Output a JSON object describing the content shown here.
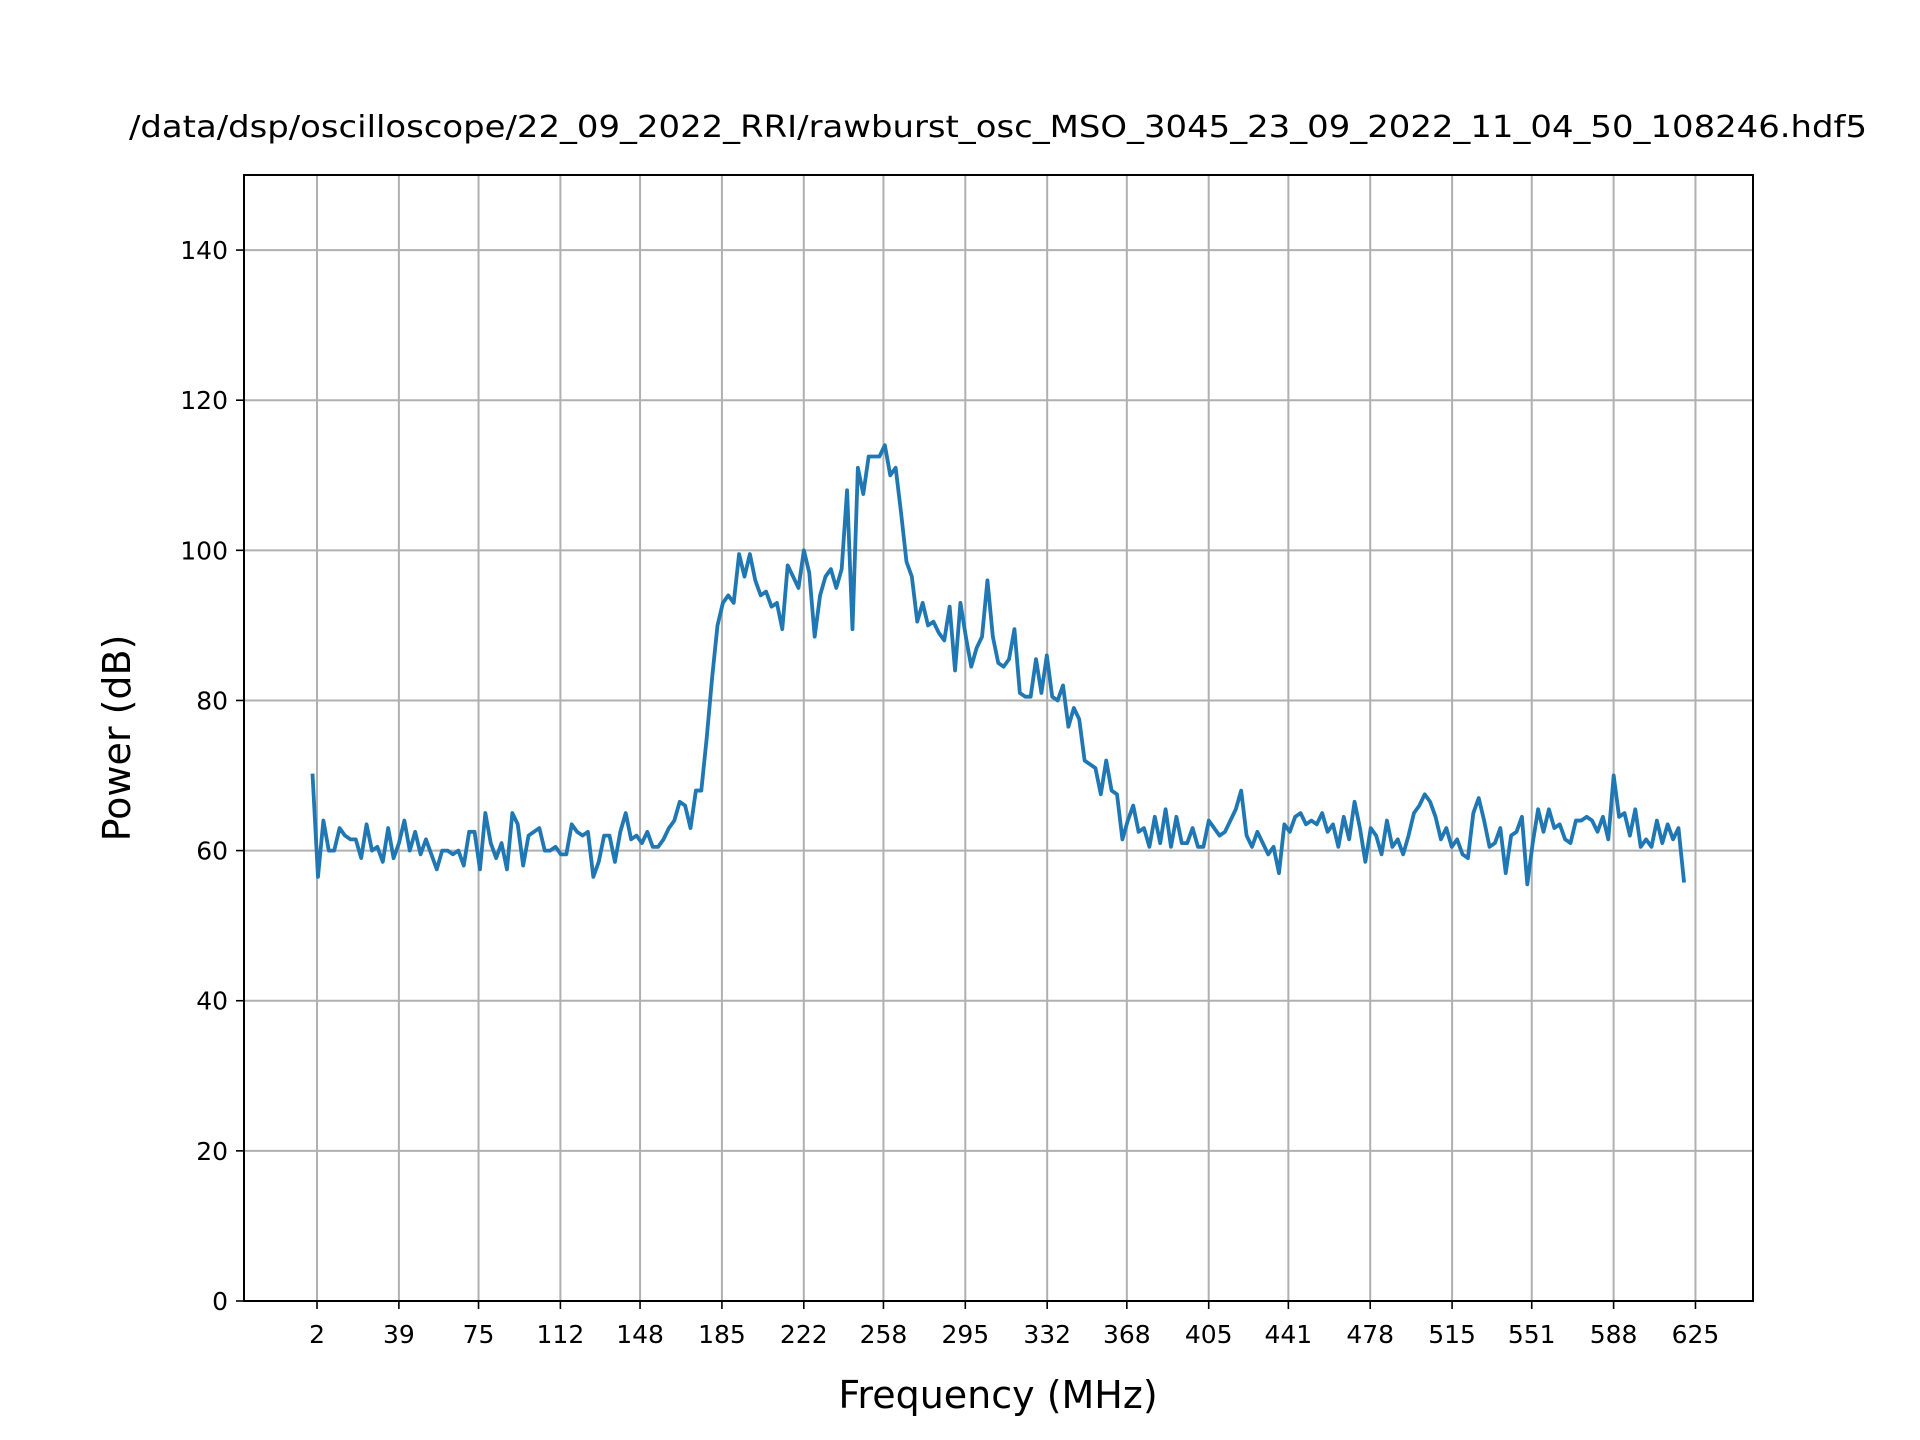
{
  "chart_data": {
    "type": "line",
    "title": "/data/dsp/oscilloscope/22_09_2022_RRI/rawburst_osc_MSO_3045_23_09_2022_11_04_50_108246.hdf5",
    "xlabel": "Frequency (MHz)",
    "ylabel": "Power (dB)",
    "color": "#1f77b4",
    "grid": true,
    "xlim": [
      -31,
      651
    ],
    "ylim": [
      0,
      150
    ],
    "xticks": [
      2,
      39,
      75,
      112,
      148,
      185,
      222,
      258,
      295,
      332,
      368,
      405,
      441,
      478,
      515,
      551,
      588,
      625
    ],
    "yticks": [
      0,
      20,
      40,
      60,
      80,
      100,
      120,
      140
    ],
    "x": [
      0,
      2.44,
      4.88,
      7.32,
      9.76,
      12.2,
      14.64,
      17.08,
      19.52,
      21.96,
      24.4,
      26.84,
      29.28,
      31.72,
      34.16,
      36.6,
      39.04,
      41.48,
      43.92,
      46.36,
      48.8,
      51.24,
      53.68,
      56.12,
      58.56,
      61,
      63.44,
      65.88,
      68.32,
      70.76,
      73.2,
      75.64,
      78.08,
      80.52,
      82.96,
      85.4,
      87.84,
      90.28,
      92.72,
      95.16,
      97.6,
      100.04,
      102.48,
      104.92,
      107.36,
      109.8,
      112.24,
      114.68,
      117.12,
      119.56,
      122,
      124.44,
      126.88,
      129.32,
      131.76,
      134.2,
      136.64,
      139.08,
      141.52,
      143.96,
      146.4,
      148.84,
      151.28,
      153.72,
      156.16,
      158.6,
      161.04,
      163.48,
      165.92,
      168.36,
      170.8,
      173.24,
      175.68,
      178.12,
      180.56,
      183,
      185.44,
      187.88,
      190.32,
      192.76,
      195.2,
      197.64,
      200.08,
      202.52,
      204.96,
      207.4,
      209.84,
      212.28,
      214.72,
      217.16,
      219.6,
      222.04,
      224.48,
      226.92,
      229.36,
      231.8,
      234.24,
      236.68,
      239.12,
      241.56,
      244,
      246.44,
      248.88,
      251.32,
      253.76,
      256.2,
      258.64,
      261.08,
      263.52,
      265.96,
      268.4,
      270.84,
      273.28,
      275.72,
      278.16,
      280.6,
      283.04,
      285.48,
      287.92,
      290.36,
      292.8,
      295.24,
      297.68,
      300.12,
      302.56,
      305,
      307.44,
      309.88,
      312.32,
      314.76,
      317.2,
      319.64,
      322.08,
      324.52,
      326.96,
      329.4,
      331.84,
      334.28,
      336.72,
      339.16,
      341.6,
      344.04,
      346.48,
      348.92,
      351.36,
      353.8,
      356.24,
      358.68,
      361.12,
      363.56,
      366,
      368.44,
      370.88,
      373.32,
      375.76,
      378.2,
      380.64,
      383.08,
      385.52,
      387.96,
      390.4,
      392.84,
      395.28,
      397.72,
      400.16,
      402.6,
      405.04,
      407.48,
      409.92,
      412.36,
      414.8,
      417.24,
      419.68,
      422.12,
      424.56,
      427,
      429.44,
      431.88,
      434.32,
      436.76,
      439.2,
      441.64,
      444.08,
      446.52,
      448.96,
      451.4,
      453.84,
      456.28,
      458.72,
      461.16,
      463.6,
      466.04,
      468.48,
      470.92,
      473.36,
      475.8,
      478.24,
      480.68,
      483.12,
      485.56,
      488,
      490.44,
      492.88,
      495.32,
      497.76,
      500.2,
      502.64,
      505.08,
      507.52,
      509.96,
      512.4,
      514.84,
      517.28,
      519.72,
      522.16,
      524.6,
      527.04,
      529.48,
      531.92,
      534.36,
      536.8,
      539.24,
      541.68,
      544.12,
      546.56,
      549,
      551.44,
      553.88,
      556.32,
      558.76,
      561.2,
      563.64,
      566.08,
      568.52,
      570.96,
      573.4,
      575.84,
      578.28,
      580.72,
      583.16,
      585.6,
      588.04,
      590.48,
      592.92,
      595.36,
      597.8,
      600.24,
      602.68,
      605.12,
      607.56,
      610,
      612.44,
      614.88,
      617.32,
      619.76
    ],
    "values": [
      70,
      56.5,
      64,
      60,
      60,
      63,
      62,
      61.5,
      61.5,
      59,
      63.5,
      60,
      60.5,
      58.5,
      63,
      59,
      61,
      64,
      60,
      62.5,
      59.5,
      61.5,
      59.5,
      57.5,
      60,
      60,
      59.5,
      60,
      58,
      62.5,
      62.5,
      57.5,
      65,
      61,
      59,
      61,
      57.5,
      65,
      63.5,
      58,
      62,
      62.5,
      63,
      60,
      60,
      60.5,
      59.5,
      59.5,
      63.5,
      62.5,
      62,
      62.5,
      56.5,
      58.5,
      62,
      62,
      58.5,
      62.5,
      65,
      61.5,
      62,
      61,
      62.5,
      60.5,
      60.5,
      61.5,
      63,
      64,
      66.5,
      66,
      63,
      68,
      68,
      75,
      83,
      90,
      93,
      94,
      93,
      99.5,
      96.5,
      99.5,
      96,
      94,
      94.5,
      92.5,
      93,
      89.5,
      98,
      96.5,
      95,
      100,
      97,
      88.5,
      94,
      96.5,
      97.5,
      95,
      97.5,
      108,
      89.5,
      111,
      107.5,
      112.5,
      112.5,
      112.5,
      114,
      110,
      111,
      105,
      98.5,
      96.5,
      90.5,
      93,
      90,
      90.5,
      89,
      88,
      92.5,
      84,
      93,
      88.5,
      84.5,
      87,
      88.5,
      96,
      88.5,
      85,
      84.5,
      85.5,
      89.5,
      81,
      80.5,
      80.5,
      85.5,
      81,
      86,
      80.5,
      80,
      82,
      76.5,
      79,
      77.5,
      72,
      71.5,
      71,
      67.5,
      72,
      68,
      67.5,
      61.5,
      64,
      66,
      62.5,
      63,
      60.5,
      64.5,
      61,
      65.5,
      60.5,
      64.5,
      61,
      61,
      63,
      60.5,
      60.5,
      64,
      63,
      62,
      62.5,
      64,
      65.5,
      68,
      62,
      60.5,
      62.5,
      61,
      59.5,
      60.5,
      57,
      63.5,
      62.5,
      64.5,
      65,
      63.5,
      64,
      63.5,
      65,
      62.5,
      63.5,
      60.5,
      64.5,
      61.5,
      66.5,
      63,
      58.5,
      63,
      62,
      59.5,
      64,
      60.5,
      61.5,
      59.5,
      62,
      65,
      66,
      67.5,
      66.5,
      64.5,
      61.5,
      63,
      60.5,
      61.5,
      59.5,
      59,
      65,
      67,
      64,
      60.5,
      61,
      63,
      57,
      62,
      62.5,
      64.5,
      55.5,
      61,
      65.5,
      62.5,
      65.5,
      63,
      63.5,
      61.5,
      61,
      64,
      64,
      64.5,
      64,
      62.5,
      64.5,
      61.5,
      70,
      64.5,
      65,
      62,
      65.5,
      60.5,
      61.5,
      60.5,
      64,
      61,
      63.5,
      61.5,
      63,
      56
    ]
  }
}
